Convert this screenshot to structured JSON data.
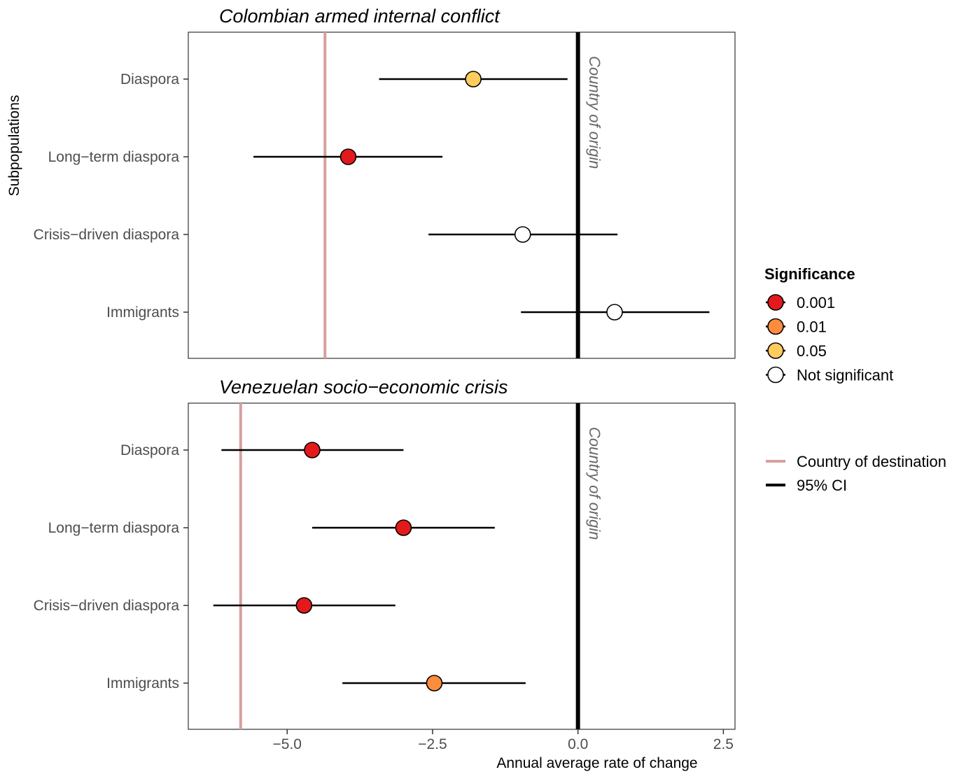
{
  "chart_data": {
    "type": "scatter",
    "ylabel": "Subpopulations",
    "xlabel": "Annual average rate of change",
    "xlim": [
      -6.7,
      2.7
    ],
    "xticks": [
      -5.0,
      -2.5,
      0.0,
      2.5
    ],
    "xtick_labels": [
      "−5.0",
      "−2.5",
      "0.0",
      "2.5"
    ],
    "categories": [
      "Diaspora",
      "Long−term diaspora",
      "Crisis−driven diaspora",
      "Immigrants"
    ],
    "origin_label": "Country of origin",
    "origin_value": 0.0,
    "grid": false,
    "legend_position": "right",
    "panels": [
      {
        "title": "Colombian armed internal conflict",
        "destination_value": -4.35,
        "points": [
          {
            "category": "Diaspora",
            "estimate": -1.8,
            "ci_low": -3.42,
            "ci_high": -0.18,
            "significance": "0.05"
          },
          {
            "category": "Long−term diaspora",
            "estimate": -3.95,
            "ci_low": -5.58,
            "ci_high": -2.33,
            "significance": "0.001"
          },
          {
            "category": "Crisis−driven diaspora",
            "estimate": -0.95,
            "ci_low": -2.57,
            "ci_high": 0.68,
            "significance": "Not significant"
          },
          {
            "category": "Immigrants",
            "estimate": 0.63,
            "ci_low": -0.98,
            "ci_high": 2.26,
            "significance": "Not significant"
          }
        ]
      },
      {
        "title": "Venezuelan socio−economic crisis",
        "destination_value": -5.8,
        "points": [
          {
            "category": "Diaspora",
            "estimate": -4.57,
            "ci_low": -6.13,
            "ci_high": -3.0,
            "significance": "0.001"
          },
          {
            "category": "Long−term diaspora",
            "estimate": -3.0,
            "ci_low": -4.57,
            "ci_high": -1.43,
            "significance": "0.001"
          },
          {
            "category": "Crisis−driven diaspora",
            "estimate": -4.71,
            "ci_low": -6.27,
            "ci_high": -3.14,
            "significance": "0.001"
          },
          {
            "category": "Immigrants",
            "estimate": -2.47,
            "ci_low": -4.05,
            "ci_high": -0.9,
            "significance": "0.01"
          }
        ]
      }
    ],
    "legend": {
      "significance_title": "Significance",
      "significance_items": [
        {
          "label": "0.001",
          "color": "#e31a1c"
        },
        {
          "label": "0.01",
          "color": "#fd8d3c"
        },
        {
          "label": "0.05",
          "color": "#fecc5c"
        },
        {
          "label": "Not significant",
          "color": "#ffffff"
        }
      ],
      "line_items": [
        {
          "label": "Country of destination",
          "color": "#d4a09e"
        },
        {
          "label": "95% CI",
          "color": "#000000"
        }
      ]
    }
  }
}
